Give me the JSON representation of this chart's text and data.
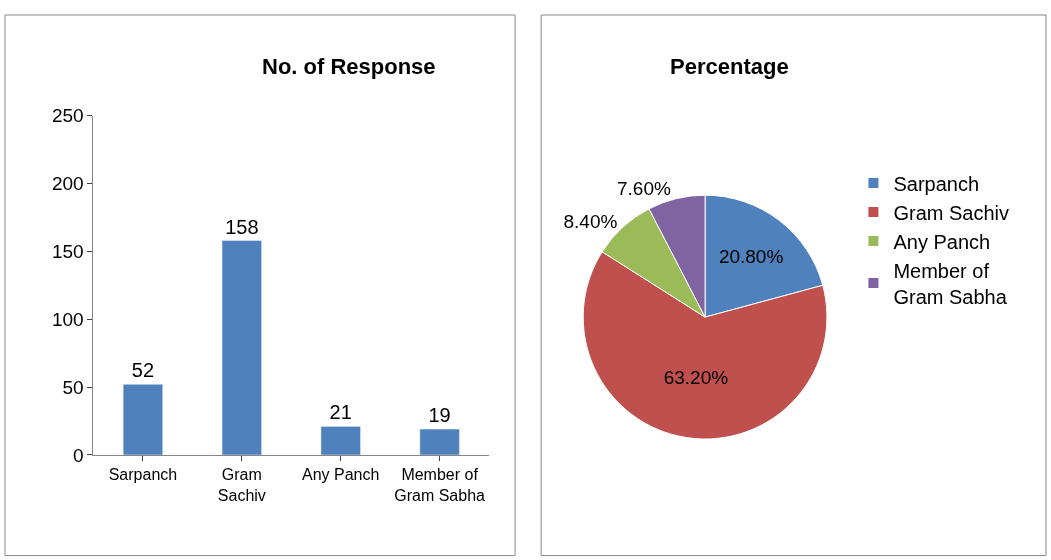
{
  "chart_data": [
    {
      "type": "bar",
      "title": "No. of Response",
      "categories": [
        "Sarpanch",
        "Gram Sachiv",
        "Any Panch",
        "Member of Gram Sabha"
      ],
      "values": [
        52,
        158,
        21,
        19
      ],
      "color": "#4f81bd",
      "ylim": [
        0,
        250
      ],
      "yticks": [
        0,
        50,
        100,
        150,
        200,
        250
      ],
      "data_labels": true
    },
    {
      "type": "pie",
      "title": "Percentage",
      "categories": [
        "Sarpanch",
        "Gram Sachiv",
        "Any Panch",
        "Member of Gram Sabha"
      ],
      "values": [
        20.8,
        63.2,
        8.4,
        7.6
      ],
      "value_labels": [
        "20.80%",
        "63.20%",
        "8.40%",
        "7.60%"
      ],
      "colors": [
        "#4f81bd",
        "#c0504d",
        "#9bbb59",
        "#8064a2"
      ],
      "legend": "right"
    }
  ]
}
